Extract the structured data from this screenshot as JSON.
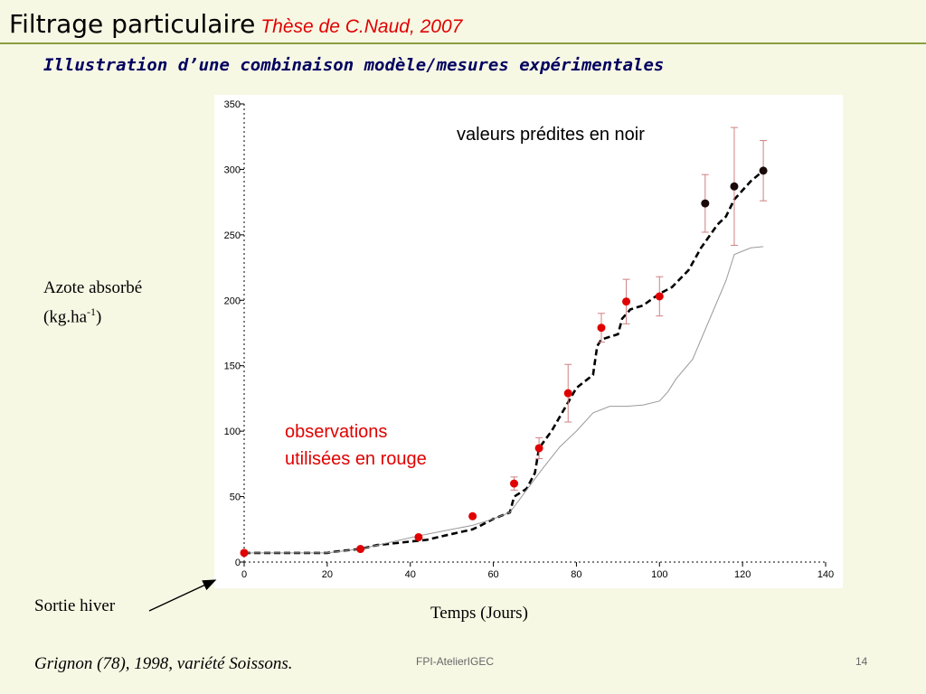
{
  "slide": {
    "title": "Filtrage particulaire",
    "title_sub": "Thèse de C.Naud, 2007",
    "subtitle": "Illustration d’une combinaison modèle/mesures expérimentales",
    "ylabel_main": "Azote absorbé",
    "ylabel_unit_prefix": "(kg.ha",
    "ylabel_unit_sup": "-1",
    "ylabel_unit_suffix": ")",
    "xlabel": "Temps (Jours)",
    "pred_note": "valeurs prédites en noir",
    "obs_note_line1": "observations",
    "obs_note_line2": "utilisées en rouge",
    "sortie_hiver": "Sortie hiver",
    "source": "Grignon (78), 1998, variété Soissons.",
    "footer": "FPI-AtelierIGEC",
    "slide_number": "14"
  },
  "colors": {
    "accent_rule": "#8aa03f",
    "observed": "#e00000",
    "predicted": "#000000",
    "errorbar": "#d08080"
  },
  "chart_data": {
    "type": "line",
    "xlim": [
      0,
      140
    ],
    "ylim": [
      0,
      350
    ],
    "xticks": [
      0,
      20,
      40,
      60,
      80,
      100,
      120,
      140
    ],
    "yticks": [
      0,
      50,
      100,
      150,
      200,
      250,
      300,
      350
    ],
    "grid": false,
    "series": [
      {
        "style": "dashed-black",
        "x": [
          0,
          16,
          20,
          22,
          28,
          32,
          38,
          44,
          48,
          55,
          57,
          60,
          64,
          65,
          68,
          70,
          71,
          74,
          78,
          80,
          84,
          85,
          86,
          88,
          90,
          91,
          93,
          96,
          100,
          103,
          107,
          110,
          114,
          116,
          118,
          122,
          125
        ],
        "y": [
          7,
          7,
          7,
          8,
          10,
          13,
          15,
          17,
          20,
          25,
          28,
          33,
          38,
          50,
          56,
          68,
          87,
          100,
          122,
          133,
          143,
          165,
          170,
          172,
          174,
          186,
          193,
          196,
          205,
          210,
          223,
          240,
          258,
          264,
          277,
          291,
          299
        ]
      },
      {
        "style": "thin-grey",
        "x": [
          0,
          16,
          20,
          28,
          35,
          42,
          50,
          55,
          60,
          64,
          68,
          72,
          76,
          80,
          84,
          88,
          92,
          96,
          100,
          102,
          104,
          108,
          112,
          116,
          118,
          122,
          125
        ],
        "y": [
          7,
          7,
          7,
          10,
          15,
          20,
          25,
          28,
          33,
          38,
          55,
          72,
          88,
          100,
          114,
          119,
          119,
          120,
          123,
          130,
          140,
          155,
          185,
          215,
          235,
          240,
          241
        ]
      }
    ],
    "points": [
      {
        "x": 0,
        "y": 7,
        "color": "red",
        "err": 0
      },
      {
        "x": 28,
        "y": 10,
        "color": "red",
        "err": 0
      },
      {
        "x": 42,
        "y": 19,
        "color": "red",
        "err": 0
      },
      {
        "x": 55,
        "y": 35,
        "color": "red",
        "err": 0
      },
      {
        "x": 65,
        "y": 60,
        "color": "red",
        "err": 5
      },
      {
        "x": 71,
        "y": 87,
        "color": "red",
        "err": 8
      },
      {
        "x": 78,
        "y": 129,
        "color": "red",
        "err": 22
      },
      {
        "x": 86,
        "y": 179,
        "color": "red",
        "err": 11
      },
      {
        "x": 92,
        "y": 199,
        "color": "red",
        "err": 17
      },
      {
        "x": 100,
        "y": 203,
        "color": "red",
        "err": 15
      },
      {
        "x": 111,
        "y": 274,
        "color": "black",
        "err": 22
      },
      {
        "x": 118,
        "y": 287,
        "color": "black",
        "err": 45
      },
      {
        "x": 125,
        "y": 299,
        "color": "black",
        "err": 23
      }
    ]
  }
}
